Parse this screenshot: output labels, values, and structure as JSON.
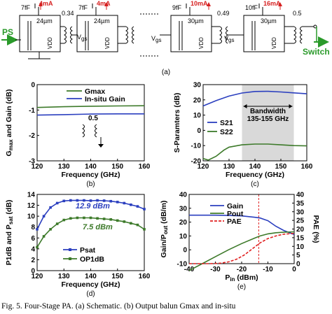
{
  "schematic": {
    "ps_label": "PS",
    "switch_label": "Switch",
    "panel_label": "(a)",
    "currents": [
      "4mA",
      "4mA",
      "10mA",
      "16mA"
    ],
    "caps": [
      "7fF",
      "7fF",
      "9fF",
      "10fF"
    ],
    "widths": [
      "24µm",
      "24µm",
      "30µm",
      "30µm"
    ],
    "ratios": [
      "0.34",
      "0.49",
      "0.5"
    ],
    "vgs_label": "V",
    "vgs_sub": "gs",
    "vdd_label": "VDD",
    "current_color": "#d62020",
    "arrow_color": "#2a9a2a"
  },
  "caption": "Fig. 5.   Four-Stage PA. (a) Schematic. (b) Output balun Gmax and in-situ",
  "chart_data": [
    {
      "panel": "(b)",
      "type": "line",
      "xlabel": "Frequency (GHz)",
      "ylabel": "G",
      "ylabel_sub": "max",
      "ylabel_rest": " and Gain (dB)",
      "xlim": [
        120,
        160
      ],
      "ylim": [
        -3,
        0
      ],
      "xticks": [
        120,
        130,
        140,
        150,
        160
      ],
      "yticks": [
        0,
        -1,
        -2,
        -3
      ],
      "ratio_label": "0.5",
      "series": [
        {
          "name": "Gmax",
          "color": "#3d7a2a",
          "x": [
            120,
            130,
            140,
            150,
            160
          ],
          "y": [
            -0.9,
            -0.87,
            -0.85,
            -0.84,
            -0.83
          ]
        },
        {
          "name": "In-situ Gain",
          "color": "#2b3fbf",
          "x": [
            120,
            130,
            140,
            150,
            160
          ],
          "y": [
            -1.2,
            -1.18,
            -1.16,
            -1.15,
            -1.15
          ]
        }
      ]
    },
    {
      "panel": "(c)",
      "type": "line",
      "xlabel": "Frequency (GHz)",
      "ylabel": "S-Paramters (dB)",
      "xlim": [
        120,
        160
      ],
      "ylim": [
        -20,
        30
      ],
      "xticks": [
        120,
        130,
        140,
        150,
        160
      ],
      "yticks": [
        30,
        20,
        10,
        0,
        -10,
        -20
      ],
      "band": [
        135,
        155
      ],
      "band_label_1": "Bandwidth",
      "band_label_2": "135-155 GHz",
      "series": [
        {
          "name": "S21",
          "color": "#2b3fbf",
          "x": [
            120,
            125,
            130,
            135,
            140,
            145,
            150,
            155,
            160
          ],
          "y": [
            16,
            19.5,
            22.5,
            24.5,
            25.5,
            25.6,
            25.2,
            24.6,
            24
          ]
        },
        {
          "name": "S22",
          "color": "#3d7a2a",
          "x": [
            120,
            122,
            125,
            128,
            130,
            135,
            140,
            145,
            150,
            155,
            160
          ],
          "y": [
            -18.5,
            -19.5,
            -17,
            -13,
            -11,
            -9.5,
            -9,
            -9,
            -9.5,
            -10,
            -10.2
          ]
        }
      ]
    },
    {
      "panel": "(d)",
      "type": "line",
      "xlabel": "Frequency (GHz)",
      "ylabel": "P1dB and P",
      "ylabel_sub": "sat",
      "ylabel_rest": " (dB)",
      "xlim": [
        120,
        160
      ],
      "ylim": [
        0,
        14
      ],
      "xticks": [
        120,
        130,
        140,
        150,
        160
      ],
      "yticks": [
        0,
        2,
        4,
        6,
        8,
        10,
        12,
        14
      ],
      "annotations": [
        {
          "text": "12.9 dBm",
          "color": "#2b3fbf"
        },
        {
          "text": "7.5 dBm",
          "color": "#3d7a2a"
        }
      ],
      "series": [
        {
          "name": "Psat",
          "color": "#2b3fbf",
          "x": [
            120,
            122.5,
            125,
            127.5,
            130,
            132.5,
            135,
            137.5,
            140,
            142.5,
            145,
            147.5,
            150,
            152.5,
            155,
            157.5,
            160
          ],
          "y": [
            7.6,
            10.0,
            11.6,
            12.4,
            12.8,
            12.9,
            12.9,
            12.9,
            12.85,
            12.9,
            12.85,
            12.75,
            12.6,
            12.4,
            12.1,
            11.8,
            11.3
          ]
        },
        {
          "name": "OP1dB",
          "color": "#3d7a2a",
          "x": [
            120,
            122.5,
            125,
            127.5,
            130,
            132.5,
            135,
            137.5,
            140,
            142.5,
            145,
            147.5,
            150,
            152.5,
            155,
            157.5,
            160
          ],
          "y": [
            4.3,
            6.3,
            7.6,
            8.6,
            9.3,
            9.6,
            9.7,
            9.7,
            9.7,
            9.6,
            9.5,
            9.4,
            9.2,
            9.0,
            8.7,
            8.4,
            7.6
          ]
        }
      ]
    },
    {
      "panel": "(e)",
      "type": "line",
      "xlabel": "P",
      "xlabel_sub": "in",
      "xlabel_rest": " (dBm)",
      "ylabel": "Gain/P",
      "ylabel_sub": "out",
      "ylabel_rest": " (dB/m)",
      "y2label": "PAE (%)",
      "xlim": [
        -40,
        0
      ],
      "ylim": [
        -10,
        40
      ],
      "y2lim": [
        0,
        40
      ],
      "xticks": [
        -40,
        -30,
        -20,
        -10,
        0
      ],
      "yticks": [
        40,
        30,
        20,
        10,
        0,
        -10
      ],
      "y2ticks": [
        40,
        35,
        30,
        25,
        20,
        15,
        10,
        5,
        0
      ],
      "vline_x": -13.5,
      "series": [
        {
          "name": "Gain",
          "color": "#2b3fbf",
          "axis": "left",
          "x": [
            -40,
            -35,
            -30,
            -25,
            -20,
            -15,
            -13,
            -10,
            -7,
            -4,
            0
          ],
          "y": [
            25,
            25,
            25,
            24.8,
            24.5,
            23.5,
            23,
            21,
            17,
            14,
            11
          ]
        },
        {
          "name": "Pout",
          "color": "#3d7a2a",
          "axis": "left",
          "x": [
            -40,
            -35,
            -30,
            -25,
            -20,
            -15,
            -13,
            -10,
            -7,
            -4,
            0
          ],
          "y": [
            -15,
            -10,
            -5,
            0,
            4.5,
            8.5,
            10,
            11.5,
            12.3,
            12.7,
            13
          ]
        },
        {
          "name": "PAE",
          "color": "#e02020",
          "axis": "right",
          "dashed": true,
          "x": [
            -40,
            -32,
            -28,
            -25,
            -22,
            -19,
            -16,
            -13,
            -10,
            -7,
            -4,
            0
          ],
          "y": [
            0,
            0,
            0.3,
            1.0,
            2.5,
            5.0,
            8.5,
            12.0,
            14.5,
            16.0,
            17.0,
            17.5
          ]
        }
      ]
    }
  ]
}
